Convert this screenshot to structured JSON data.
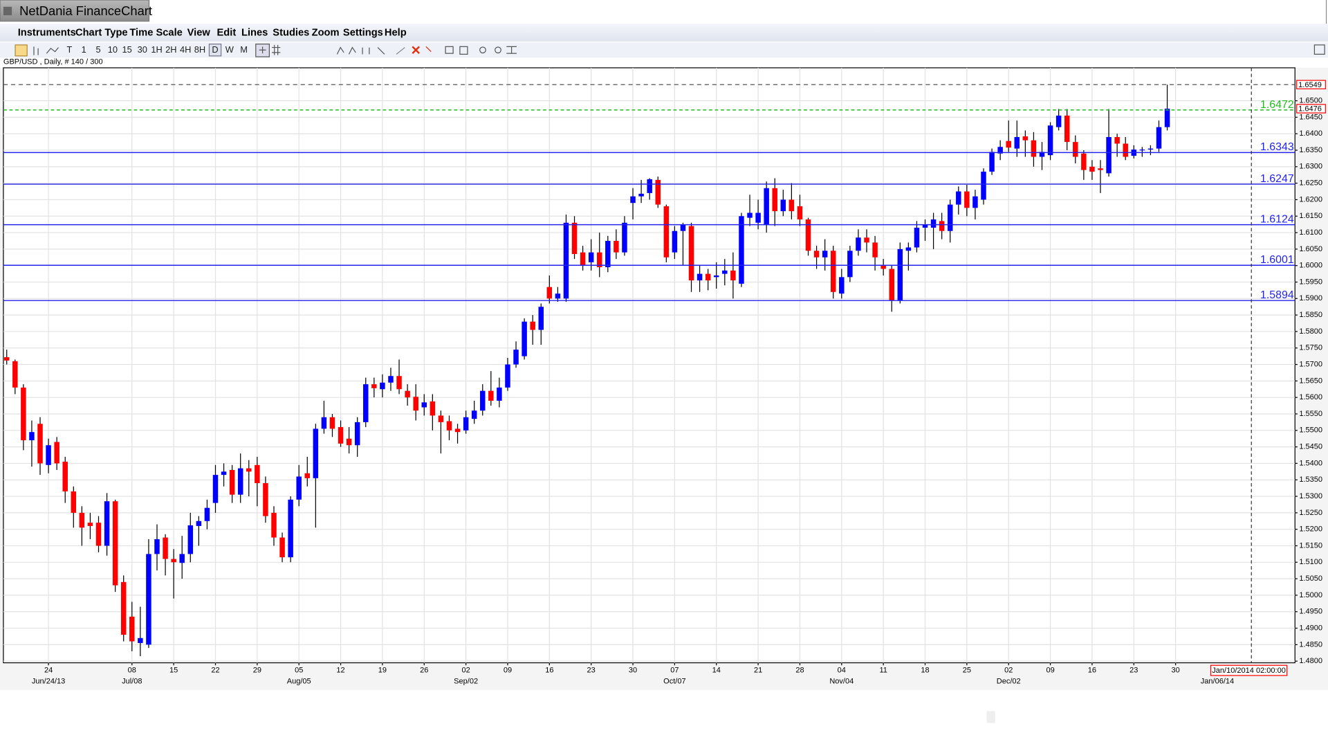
{
  "window": {
    "title": "NetDania FinanceChart"
  },
  "menu": [
    "Instruments",
    "Chart Type",
    "Time Scale",
    "View",
    "Edit",
    "Lines",
    "Studies",
    "Zoom",
    "Settings",
    "Help"
  ],
  "toolbar": [
    "T",
    "1",
    "5",
    "10",
    "15",
    "30",
    "1H",
    "2H",
    "4H",
    "8H",
    "D",
    "W",
    "M"
  ],
  "chart_data": {
    "type": "candlestick",
    "title": "GBP/USD , Daily, # 140 / 300",
    "up_color": "#0000ff",
    "down_color": "#ff0000",
    "wick_color": "#000000",
    "open": [
      1.5722,
      1.571,
      1.563,
      1.547,
      1.552,
      1.5395,
      1.5465,
      1.5405,
      1.5315,
      1.525,
      1.522,
      1.522,
      1.515,
      1.5285,
      1.504,
      1.4935,
      1.4855,
      1.485,
      1.5125,
      1.5175,
      1.511,
      1.5098,
      1.5125,
      1.521,
      1.5225,
      1.528,
      1.5365,
      1.538,
      1.5305,
      1.5385,
      1.5395,
      1.534,
      1.525,
      1.5175,
      1.5115,
      1.529,
      1.537,
      1.5355,
      1.5505,
      1.554,
      1.551,
      1.5475,
      1.5455,
      1.5525,
      1.564,
      1.5625,
      1.5645,
      1.5665,
      1.562,
      1.5602,
      1.557,
      1.5588,
      1.5545,
      1.5528,
      1.5505,
      1.55,
      1.5535,
      1.556,
      1.562,
      1.559,
      1.563,
      1.57,
      1.5725,
      1.583,
      1.5805,
      1.5935,
      1.59,
      1.59,
      1.613,
      1.604,
      1.601,
      1.604,
      1.5995,
      1.6075,
      1.604,
      1.619,
      1.621,
      1.622,
      1.626,
      1.618,
      1.604,
      1.6105,
      1.612,
      1.5955,
      1.5975,
      1.5965,
      1.5975,
      1.5985,
      1.5945,
      1.6145,
      1.613,
      1.6125,
      1.6235,
      1.6165,
      1.62,
      1.618,
      1.614,
      1.6045,
      1.6025,
      1.6045,
      1.5915,
      1.5965,
      1.6045,
      1.6085,
      1.607,
      1.6,
      1.599,
      1.5895,
      1.6045,
      1.6055,
      1.6115,
      1.6115,
      1.6135,
      1.6105,
      1.6185,
      1.6225,
      1.6175,
      1.62,
      1.6285,
      1.634,
      1.6378,
      1.6355,
      1.6392,
      1.638,
      1.633,
      1.6335,
      1.642,
      1.6455,
      1.6375,
      1.634,
      1.63,
      1.6295,
      1.628,
      1.639,
      1.637,
      1.6333,
      1.635,
      1.6352,
      1.6355,
      1.642
    ],
    "high": [
      1.5745,
      1.5715,
      1.564,
      1.553,
      1.554,
      1.5475,
      1.548,
      1.542,
      1.533,
      1.527,
      1.525,
      1.524,
      1.531,
      1.529,
      1.506,
      1.498,
      1.4965,
      1.517,
      1.5215,
      1.5185,
      1.514,
      1.518,
      1.525,
      1.524,
      1.529,
      1.5395,
      1.54,
      1.5395,
      1.543,
      1.541,
      1.542,
      1.536,
      1.527,
      1.519,
      1.53,
      1.5395,
      1.542,
      1.552,
      1.559,
      1.555,
      1.553,
      1.551,
      1.554,
      1.566,
      1.566,
      1.567,
      1.569,
      1.5715,
      1.564,
      1.564,
      1.561,
      1.561,
      1.556,
      1.5545,
      1.552,
      1.556,
      1.559,
      1.564,
      1.568,
      1.566,
      1.572,
      1.577,
      1.584,
      1.585,
      1.5885,
      1.597,
      1.5935,
      1.6155,
      1.615,
      1.606,
      1.608,
      1.61,
      1.609,
      1.611,
      1.615,
      1.6235,
      1.626,
      1.6265,
      1.627,
      1.6185,
      1.612,
      1.613,
      1.613,
      1.6,
      1.599,
      1.601,
      1.602,
      1.604,
      1.616,
      1.6215,
      1.62,
      1.6255,
      1.6265,
      1.623,
      1.625,
      1.6215,
      1.6145,
      1.606,
      1.608,
      1.606,
      1.599,
      1.606,
      1.611,
      1.611,
      1.609,
      1.602,
      1.6,
      1.607,
      1.607,
      1.6135,
      1.614,
      1.616,
      1.616,
      1.62,
      1.624,
      1.6245,
      1.623,
      1.6295,
      1.6355,
      1.638,
      1.644,
      1.644,
      1.641,
      1.6405,
      1.6375,
      1.6435,
      1.6475,
      1.6475,
      1.6395,
      1.635,
      1.632,
      1.632,
      1.6475,
      1.64,
      1.639,
      1.6365,
      1.636,
      1.6365,
      1.644,
      1.6549
    ],
    "low": [
      1.57,
      1.561,
      1.544,
      1.539,
      1.5365,
      1.537,
      1.538,
      1.528,
      1.5205,
      1.515,
      1.517,
      1.513,
      1.512,
      1.501,
      1.486,
      1.483,
      1.4815,
      1.484,
      1.5075,
      1.506,
      1.499,
      1.505,
      1.51,
      1.515,
      1.52,
      1.525,
      1.533,
      1.528,
      1.528,
      1.53,
      1.527,
      1.522,
      1.515,
      1.51,
      1.51,
      1.527,
      1.533,
      1.5205,
      1.549,
      1.548,
      1.545,
      1.543,
      1.542,
      1.551,
      1.56,
      1.56,
      1.562,
      1.561,
      1.5575,
      1.553,
      1.5545,
      1.55,
      1.543,
      1.547,
      1.546,
      1.549,
      1.552,
      1.5545,
      1.5575,
      1.557,
      1.562,
      1.569,
      1.5715,
      1.576,
      1.576,
      1.5885,
      1.589,
      1.589,
      1.602,
      1.5985,
      1.5985,
      1.5965,
      1.598,
      1.602,
      1.603,
      1.614,
      1.619,
      1.62,
      1.6175,
      1.601,
      1.602,
      1.6,
      1.592,
      1.592,
      1.5925,
      1.593,
      1.594,
      1.59,
      1.5935,
      1.612,
      1.611,
      1.61,
      1.612,
      1.615,
      1.614,
      1.612,
      1.603,
      1.599,
      1.5985,
      1.59,
      1.59,
      1.595,
      1.603,
      1.604,
      1.5985,
      1.597,
      1.586,
      1.5885,
      1.5985,
      1.604,
      1.6075,
      1.605,
      1.608,
      1.607,
      1.6155,
      1.615,
      1.614,
      1.6185,
      1.6275,
      1.632,
      1.6345,
      1.633,
      1.633,
      1.63,
      1.629,
      1.632,
      1.641,
      1.635,
      1.631,
      1.626,
      1.626,
      1.622,
      1.627,
      1.633,
      1.632,
      1.6325,
      1.633,
      1.6335,
      1.6345,
      1.641
    ],
    "close": [
      1.5712,
      1.563,
      1.547,
      1.5495,
      1.54,
      1.5455,
      1.54,
      1.5315,
      1.525,
      1.5205,
      1.521,
      1.515,
      1.5285,
      1.503,
      1.488,
      1.486,
      1.487,
      1.5125,
      1.517,
      1.511,
      1.51,
      1.5125,
      1.5212,
      1.5225,
      1.5265,
      1.5365,
      1.5375,
      1.5305,
      1.5385,
      1.5375,
      1.534,
      1.524,
      1.5175,
      1.5115,
      1.529,
      1.536,
      1.5355,
      1.5505,
      1.554,
      1.5505,
      1.546,
      1.5455,
      1.5525,
      1.564,
      1.5628,
      1.5645,
      1.5665,
      1.5625,
      1.56,
      1.556,
      1.5585,
      1.5545,
      1.5525,
      1.55,
      1.5495,
      1.554,
      1.556,
      1.562,
      1.559,
      1.563,
      1.57,
      1.5745,
      1.583,
      1.5805,
      1.5875,
      1.59,
      1.5915,
      1.613,
      1.6035,
      1.6,
      1.604,
      1.5995,
      1.6075,
      1.604,
      1.613,
      1.621,
      1.6218,
      1.6262,
      1.6185,
      1.6025,
      1.6105,
      1.6125,
      1.5955,
      1.5975,
      1.5955,
      1.597,
      1.5985,
      1.5955,
      1.615,
      1.616,
      1.616,
      1.6235,
      1.6165,
      1.62,
      1.6165,
      1.614,
      1.6045,
      1.6025,
      1.6045,
      1.592,
      1.5965,
      1.6045,
      1.6085,
      1.607,
      1.6025,
      1.599,
      1.5895,
      1.605,
      1.6055,
      1.6115,
      1.6125,
      1.614,
      1.6105,
      1.6185,
      1.6225,
      1.6175,
      1.621,
      1.6285,
      1.6345,
      1.636,
      1.6358,
      1.639,
      1.638,
      1.633,
      1.6345,
      1.6425,
      1.6455,
      1.6375,
      1.633,
      1.629,
      1.6285,
      1.629,
      1.639,
      1.637,
      1.633,
      1.6352,
      1.6352,
      1.6355,
      1.642,
      1.6476
    ],
    "xlim": [
      -0.4,
      154.3
    ],
    "ylim": [
      1.4795,
      1.66
    ],
    "grid": true,
    "xticks": [
      {
        "value": 5,
        "label": "24"
      },
      {
        "value": 15,
        "label": "08"
      },
      {
        "value": 20,
        "label": "15"
      },
      {
        "value": 25,
        "label": "22"
      },
      {
        "value": 30,
        "label": "29"
      },
      {
        "value": 35,
        "label": "05"
      },
      {
        "value": 40,
        "label": "12"
      },
      {
        "value": 45,
        "label": "19"
      },
      {
        "value": 50,
        "label": "26"
      },
      {
        "value": 55,
        "label": "02"
      },
      {
        "value": 60,
        "label": "09"
      },
      {
        "value": 65,
        "label": "16"
      },
      {
        "value": 70,
        "label": "23"
      },
      {
        "value": 75,
        "label": "30"
      },
      {
        "value": 80,
        "label": "07"
      },
      {
        "value": 85,
        "label": "14"
      },
      {
        "value": 90,
        "label": "21"
      },
      {
        "value": 95,
        "label": "28"
      },
      {
        "value": 100,
        "label": "04"
      },
      {
        "value": 105,
        "label": "11"
      },
      {
        "value": 110,
        "label": "18"
      },
      {
        "value": 115,
        "label": "25"
      },
      {
        "value": 120,
        "label": "02"
      },
      {
        "value": 125,
        "label": "09"
      },
      {
        "value": 130,
        "label": "16"
      },
      {
        "value": 135,
        "label": "23"
      },
      {
        "value": 140,
        "label": "30"
      }
    ],
    "xticks_major": [
      {
        "value": 5,
        "label": "Jun/24/13"
      },
      {
        "value": 15,
        "label": "Jul/08"
      },
      {
        "value": 35,
        "label": "Aug/05"
      },
      {
        "value": 55,
        "label": "Sep/02"
      },
      {
        "value": 80,
        "label": "Oct/07"
      },
      {
        "value": 100,
        "label": "Nov/04"
      },
      {
        "value": 120,
        "label": "Dec/02"
      },
      {
        "value": 145,
        "label": "Jan/06/14"
      }
    ],
    "yticks": [
      {
        "value": 1.48,
        "label": "1.4800"
      },
      {
        "value": 1.485,
        "label": "1.4850"
      },
      {
        "value": 1.49,
        "label": "1.4900"
      },
      {
        "value": 1.495,
        "label": "1.4950"
      },
      {
        "value": 1.5,
        "label": "1.5000"
      },
      {
        "value": 1.505,
        "label": "1.5050"
      },
      {
        "value": 1.51,
        "label": "1.5100"
      },
      {
        "value": 1.515,
        "label": "1.5150"
      },
      {
        "value": 1.52,
        "label": "1.5200"
      },
      {
        "value": 1.525,
        "label": "1.5250"
      },
      {
        "value": 1.53,
        "label": "1.5300"
      },
      {
        "value": 1.535,
        "label": "1.5350"
      },
      {
        "value": 1.54,
        "label": "1.5400"
      },
      {
        "value": 1.545,
        "label": "1.5450"
      },
      {
        "value": 1.55,
        "label": "1.5500"
      },
      {
        "value": 1.555,
        "label": "1.5550"
      },
      {
        "value": 1.56,
        "label": "1.5600"
      },
      {
        "value": 1.565,
        "label": "1.5650"
      },
      {
        "value": 1.57,
        "label": "1.5700"
      },
      {
        "value": 1.575,
        "label": "1.5750"
      },
      {
        "value": 1.58,
        "label": "1.5800"
      },
      {
        "value": 1.585,
        "label": "1.5850"
      },
      {
        "value": 1.59,
        "label": "1.5900"
      },
      {
        "value": 1.595,
        "label": "1.5950"
      },
      {
        "value": 1.6,
        "label": "1.6000"
      },
      {
        "value": 1.605,
        "label": "1.6050"
      },
      {
        "value": 1.61,
        "label": "1.6100"
      },
      {
        "value": 1.615,
        "label": "1.6150"
      },
      {
        "value": 1.62,
        "label": "1.6200"
      },
      {
        "value": 1.625,
        "label": "1.6250"
      },
      {
        "value": 1.63,
        "label": "1.6300"
      },
      {
        "value": 1.635,
        "label": "1.6350"
      },
      {
        "value": 1.64,
        "label": "1.6400"
      },
      {
        "value": 1.645,
        "label": "1.6450"
      },
      {
        "value": 1.65,
        "label": "1.6500"
      }
    ],
    "levels": [
      {
        "value": 1.6472,
        "color": "#22bb22",
        "dashed": true
      },
      {
        "value": 1.6343,
        "color": "#2222ee",
        "dashed": false
      },
      {
        "value": 1.6247,
        "color": "#2222ee",
        "dashed": false
      },
      {
        "value": 1.6124,
        "color": "#2222ee",
        "dashed": false
      },
      {
        "value": 1.6001,
        "color": "#2222ee",
        "dashed": false
      },
      {
        "value": 1.5894,
        "color": "#2222ee",
        "dashed": false
      }
    ],
    "high_marker": 1.6549,
    "last_price": 1.6476,
    "cursor": {
      "value": 149.08,
      "label": "Jan/10/2014 02:00:00"
    }
  }
}
